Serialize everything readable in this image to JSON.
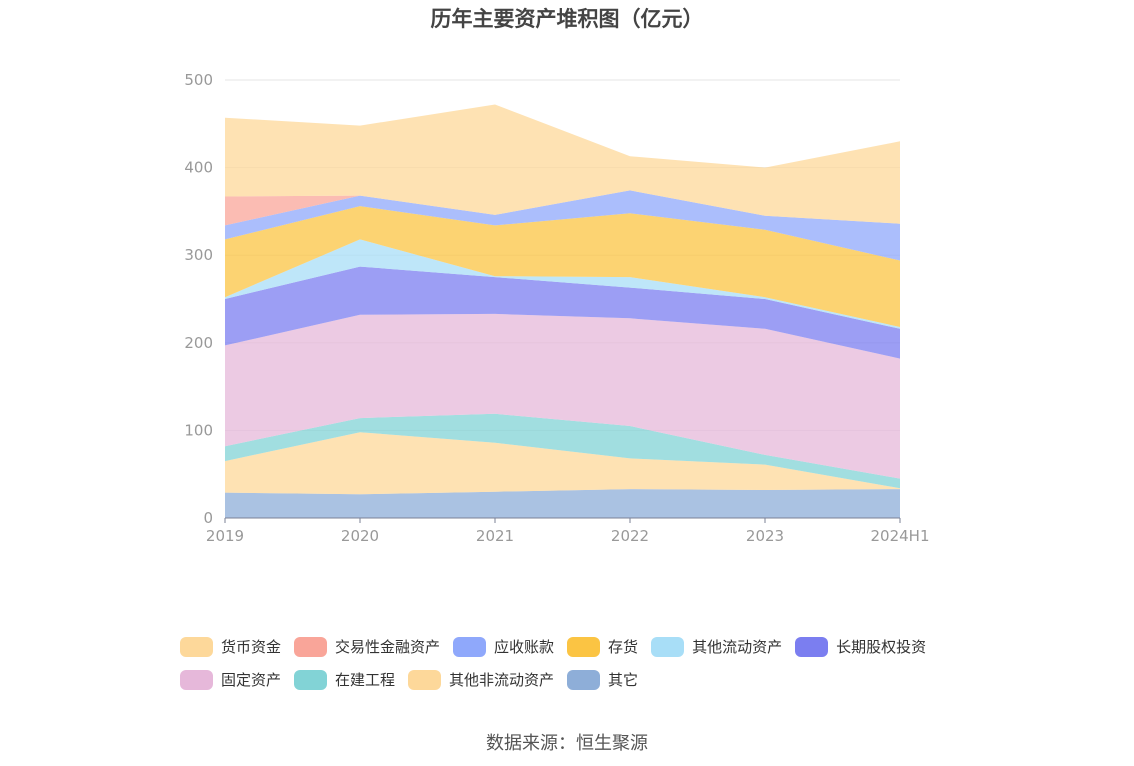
{
  "chart_data": {
    "type": "area",
    "stacked": true,
    "title": "历年主要资产堆积图（亿元）",
    "source": "数据来源：恒生聚源",
    "categories": [
      "2019",
      "2020",
      "2021",
      "2022",
      "2023",
      "2024H1"
    ],
    "ylim": [
      0,
      500
    ],
    "yticks": [
      0,
      100,
      200,
      300,
      400,
      500
    ],
    "grid": true,
    "legend_position": "bottom",
    "series": [
      {
        "name": "其它",
        "color": "#8eaed8",
        "values": [
          29,
          27,
          30,
          33,
          32,
          33
        ]
      },
      {
        "name": "其他非流动资产",
        "color": "#fdd89a",
        "values": [
          36,
          71,
          56,
          35,
          29,
          1
        ]
      },
      {
        "name": "在建工程",
        "color": "#82d3d6",
        "values": [
          17,
          16,
          33,
          37,
          11,
          11
        ]
      },
      {
        "name": "固定资产",
        "color": "#e6b8da",
        "values": [
          115,
          118,
          114,
          123,
          144,
          137
        ]
      },
      {
        "name": "长期股权投资",
        "color": "#7b7ef0",
        "values": [
          53,
          55,
          42,
          35,
          34,
          34
        ]
      },
      {
        "name": "其他流动资产",
        "color": "#a8def7",
        "values": [
          2,
          31,
          1,
          12,
          2,
          2
        ]
      },
      {
        "name": "存货",
        "color": "#fbc443",
        "values": [
          66,
          38,
          58,
          73,
          77,
          76
        ]
      },
      {
        "name": "应收账款",
        "color": "#8fa8fb",
        "values": [
          16,
          12,
          12,
          26,
          16,
          42
        ]
      },
      {
        "name": "交易性金融资产",
        "color": "#f9a599",
        "values": [
          33,
          0,
          0,
          0,
          0,
          0
        ]
      },
      {
        "name": "货币资金",
        "color": "#fdd89a",
        "values": [
          90,
          80,
          126,
          39,
          55,
          94
        ]
      }
    ]
  },
  "legend": {
    "row1": [
      {
        "label": "货币资金",
        "color": "#fdd89a"
      },
      {
        "label": "交易性金融资产",
        "color": "#f9a599"
      },
      {
        "label": "应收账款",
        "color": "#8fa8fb"
      },
      {
        "label": "存货",
        "color": "#fbc443"
      },
      {
        "label": "其他流动资产",
        "color": "#a8def7"
      },
      {
        "label": "长期股权投资",
        "color": "#7b7ef0"
      }
    ],
    "row2": [
      {
        "label": "固定资产",
        "color": "#e6b8da"
      },
      {
        "label": "在建工程",
        "color": "#82d3d6"
      },
      {
        "label": "其他非流动资产",
        "color": "#fdd89a"
      },
      {
        "label": "其它",
        "color": "#8eaed8"
      }
    ]
  }
}
